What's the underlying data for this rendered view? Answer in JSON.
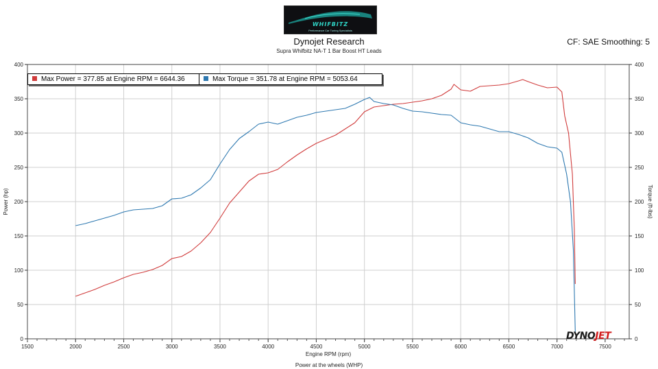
{
  "logo": {
    "brand": "WHIFBITZ",
    "tagline": "Performance Car Tuning Specialists",
    "icon": "car-silhouette-logo"
  },
  "header": {
    "title": "Dynojet Research",
    "subtitle": "Supra Whifbitz NA-T 1 Bar Boost HT Leads",
    "cf_info": "CF: SAE Smoothing: 5"
  },
  "legend": {
    "power": "Max Power = 377.85 at Engine RPM = 6644.36",
    "torque": "Max Torque = 351.78 at Engine RPM = 5053.64"
  },
  "footer": {
    "caption": "Power at the wheels (WHP)"
  },
  "brand_mark": {
    "dyno": "DYNO",
    "jet": "JET"
  },
  "colors": {
    "power": "#d03a3a",
    "torque": "#2d78b0",
    "grid": "#cfcfcf"
  },
  "chart_data": {
    "type": "line",
    "xlabel": "Engine RPM (rpm)",
    "ylabel": "Power (hp)",
    "y2label": "Torque (ft-lbs)",
    "xlim": [
      1500,
      7750
    ],
    "ylim": [
      0,
      400
    ],
    "y2lim": [
      0,
      400
    ],
    "x_ticks": [
      1500,
      2000,
      2500,
      3000,
      3500,
      4000,
      4500,
      5000,
      5500,
      6000,
      6500,
      7000,
      7500
    ],
    "y_ticks": [
      0,
      50,
      100,
      150,
      200,
      250,
      300,
      350,
      400
    ],
    "grid": true,
    "series": [
      {
        "name": "Power",
        "axis": "left",
        "x": [
          2000,
          2100,
          2200,
          2300,
          2400,
          2500,
          2600,
          2700,
          2800,
          2900,
          3000,
          3100,
          3200,
          3300,
          3400,
          3500,
          3600,
          3700,
          3800,
          3900,
          4000,
          4100,
          4200,
          4300,
          4400,
          4500,
          4600,
          4700,
          4800,
          4900,
          5000,
          5100,
          5200,
          5300,
          5400,
          5500,
          5600,
          5700,
          5800,
          5900,
          5930,
          6000,
          6100,
          6200,
          6300,
          6400,
          6500,
          6600,
          6644,
          6700,
          6800,
          6900,
          7000,
          7050,
          7080,
          7120,
          7160,
          7180,
          7190
        ],
        "values": [
          62,
          67,
          72,
          78,
          83,
          89,
          94,
          97,
          101,
          107,
          117,
          120,
          128,
          140,
          155,
          176,
          198,
          214,
          230,
          240,
          242,
          247,
          258,
          268,
          277,
          285,
          291,
          297,
          306,
          315,
          331,
          338,
          340,
          342,
          343,
          345,
          347,
          350,
          355,
          364,
          371,
          363,
          361,
          368,
          369,
          370,
          372,
          376,
          378,
          375,
          370,
          366,
          367,
          360,
          325,
          300,
          240,
          160,
          80
        ]
      },
      {
        "name": "Torque",
        "axis": "right",
        "x": [
          2000,
          2100,
          2200,
          2300,
          2400,
          2500,
          2600,
          2700,
          2800,
          2900,
          3000,
          3100,
          3200,
          3300,
          3400,
          3500,
          3600,
          3700,
          3800,
          3900,
          4000,
          4100,
          4200,
          4300,
          4400,
          4500,
          4600,
          4700,
          4800,
          4900,
          5000,
          5054,
          5100,
          5200,
          5300,
          5400,
          5500,
          5600,
          5700,
          5800,
          5900,
          6000,
          6100,
          6200,
          6300,
          6400,
          6500,
          6600,
          6700,
          6800,
          6900,
          7000,
          7050,
          7100,
          7140,
          7170,
          7190
        ],
        "values": [
          165,
          168,
          172,
          176,
          180,
          185,
          188,
          189,
          190,
          194,
          204,
          205,
          210,
          220,
          232,
          255,
          276,
          292,
          302,
          313,
          316,
          313,
          318,
          323,
          326,
          330,
          332,
          334,
          336,
          342,
          349,
          352,
          346,
          343,
          341,
          336,
          332,
          331,
          329,
          327,
          326,
          315,
          312,
          310,
          306,
          302,
          302,
          298,
          293,
          285,
          280,
          278,
          272,
          240,
          200,
          130,
          10
        ]
      }
    ]
  }
}
